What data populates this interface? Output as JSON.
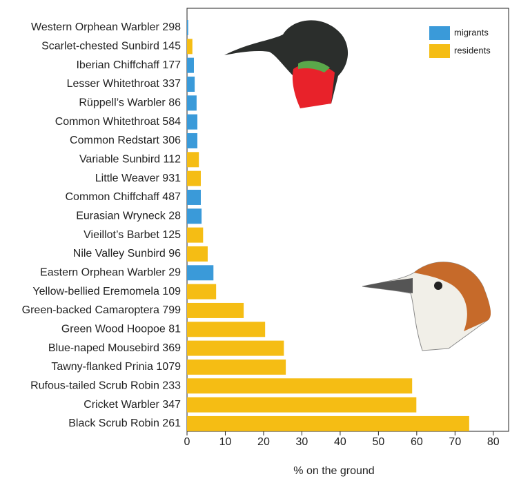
{
  "chart_data": {
    "type": "bar",
    "orientation": "horizontal",
    "xlabel": "% on the ground",
    "categories": [
      "Western Orphean Warbler 298",
      "Scarlet-chested Sunbird 145",
      "Iberian Chiffchaff 177",
      "Lesser Whitethroat 337",
      "Rüppell’s Warbler 86",
      "Common Whitethroat 584",
      "Common Redstart 306",
      "Variable Sunbird 112",
      "Little Weaver 931",
      "Common Chiffchaff 487",
      "Eurasian Wryneck 28",
      "Vieillot’s Barbet 125",
      "Nile Valley Sunbird 96",
      "Eastern Orphean Warbler 29",
      "Yellow-bellied Eremomela 109",
      "Green-backed Camaroptera 799",
      "Green Wood Hoopoe 81",
      "Blue-naped Mousebird 369",
      "Tawny-flanked Prinia 1079",
      "Rufous-tailed Scrub Robin 233",
      "Cricket Warbler 347",
      "Black Scrub Robin 261"
    ],
    "series": [
      {
        "name": "migrants",
        "color": "#3a9ad9",
        "values": [
          0.3,
          null,
          1.8,
          2.0,
          2.5,
          2.7,
          2.7,
          null,
          null,
          3.6,
          3.8,
          null,
          null,
          6.9,
          null,
          null,
          null,
          null,
          null,
          null,
          null,
          null
        ]
      },
      {
        "name": "residents",
        "color": "#f5bd14",
        "values": [
          null,
          1.4,
          null,
          null,
          null,
          null,
          null,
          3.1,
          3.6,
          null,
          null,
          4.2,
          5.4,
          null,
          7.6,
          14.8,
          20.4,
          25.3,
          25.8,
          58.8,
          59.9,
          73.7
        ]
      }
    ],
    "xlim": [
      0,
      84
    ],
    "xticks": [
      0,
      10,
      20,
      30,
      40,
      50,
      60,
      70,
      80
    ],
    "legend": "upper right"
  }
}
